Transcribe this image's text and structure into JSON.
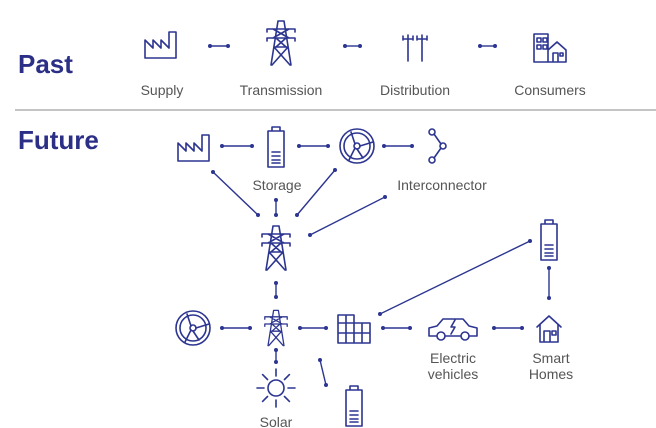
{
  "past": {
    "title": "Past",
    "nodes": [
      "Supply",
      "Transmission",
      "Distribution",
      "Consumers"
    ]
  },
  "future": {
    "title": "Future",
    "labels": {
      "storage": [
        "Storage"
      ],
      "interconnector": [
        "Interconnector"
      ],
      "ev": [
        "Electric",
        "vehicles"
      ],
      "homes": [
        "Smart",
        "Homes"
      ],
      "solar": [
        "Solar"
      ]
    }
  }
}
